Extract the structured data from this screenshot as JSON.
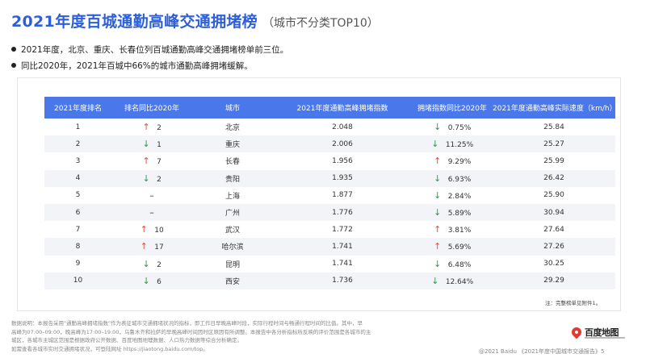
{
  "header": {
    "title": "2021年度百城通勤高峰交通拥堵榜",
    "subtitle": "（城市不分类TOP10）"
  },
  "bullets": [
    "2021年度，北京、重庆、长春位列百城通勤高峰交通拥堵榜单前三位。",
    "同比2020年，2021年百城中66%的城市通勤高峰拥堵缓解。"
  ],
  "table": {
    "columns": [
      "2021年度排名",
      "排名同比2020年",
      "城市",
      "2021年度通勤高峰拥堵指数",
      "拥堵指数同比2020年",
      "2021年度通勤高峰实际速度（km/h）"
    ],
    "rows": [
      {
        "rank": "1",
        "rank_dir": "up",
        "rank_change": "2",
        "city": "北京",
        "index": "2.048",
        "idx_dir": "down",
        "idx_change": "0.75%",
        "speed": "25.84"
      },
      {
        "rank": "2",
        "rank_dir": "down",
        "rank_change": "1",
        "city": "重庆",
        "index": "2.006",
        "idx_dir": "down",
        "idx_change": "11.25%",
        "speed": "25.27"
      },
      {
        "rank": "3",
        "rank_dir": "up",
        "rank_change": "7",
        "city": "长春",
        "index": "1.956",
        "idx_dir": "up",
        "idx_change": "9.29%",
        "speed": "25.99"
      },
      {
        "rank": "4",
        "rank_dir": "down",
        "rank_change": "2",
        "city": "贵阳",
        "index": "1.935",
        "idx_dir": "down",
        "idx_change": "6.93%",
        "speed": "26.42"
      },
      {
        "rank": "5",
        "rank_dir": "flat",
        "rank_change": "",
        "city": "上海",
        "index": "1.877",
        "idx_dir": "down",
        "idx_change": "2.84%",
        "speed": "25.90"
      },
      {
        "rank": "6",
        "rank_dir": "flat",
        "rank_change": "",
        "city": "广州",
        "index": "1.776",
        "idx_dir": "down",
        "idx_change": "5.89%",
        "speed": "30.94"
      },
      {
        "rank": "7",
        "rank_dir": "up",
        "rank_change": "10",
        "city": "武汉",
        "index": "1.772",
        "idx_dir": "up",
        "idx_change": "3.81%",
        "speed": "27.64"
      },
      {
        "rank": "8",
        "rank_dir": "up",
        "rank_change": "17",
        "city": "哈尔滨",
        "index": "1.741",
        "idx_dir": "up",
        "idx_change": "5.69%",
        "speed": "27.26"
      },
      {
        "rank": "9",
        "rank_dir": "down",
        "rank_change": "2",
        "city": "昆明",
        "index": "1.741",
        "idx_dir": "down",
        "idx_change": "6.48%",
        "speed": "30.25"
      },
      {
        "rank": "10",
        "rank_dir": "down",
        "rank_change": "6",
        "city": "西安",
        "index": "1.736",
        "idx_dir": "down",
        "idx_change": "12.64%",
        "speed": "29.29"
      }
    ],
    "note": "注：完整榜单见附件1。"
  },
  "footer": {
    "lines": [
      "数据说明：本报告采用\"通勤高峰拥堵指数\"作为表征城市交通拥堵状况的指标，即工作日早晚高峰时段，实际行程时间与畅通行程时间的比值。其中，早",
      "高峰为07:00–09:00，晚高峰为17:00–19:00，乌鲁木齐和拉萨的早晚高峰时间因时区原因有所调整。本报告中各分析指标所反映的评价范围是各城市的主",
      "城区，各城市主城区范围是根据政府公开数据、百度地图地理数据、人口热力数据等综合分析确定。",
      "如需查看各城市实时交通拥堵状况，可登陆网址 https://jiaotong.baidu.com/top。"
    ],
    "copyright": "@2021 Baidu 《2021年度中国城市交通报告》5"
  },
  "logo": {
    "text": "百度地图",
    "icon": "map-pin-icon"
  },
  "colors": {
    "accent": "#2c5fd9",
    "header_bg": "#4a77ea",
    "up": "#e64a3b",
    "down": "#2b9d4b"
  }
}
